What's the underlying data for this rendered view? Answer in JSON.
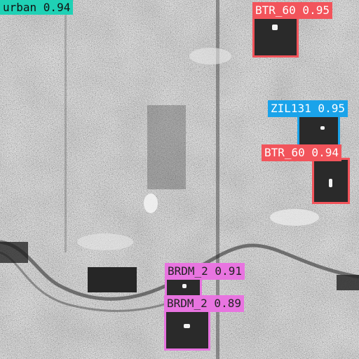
{
  "image": {
    "kind": "SAR grayscale scene with object detections"
  },
  "scene_label": {
    "text": "urban 0.94",
    "color": "#1fd1b5",
    "text_color": "#111111"
  },
  "detections": [
    {
      "label": "BTR_60 0.95",
      "class": "BTR_60",
      "confidence": 0.95,
      "color": "#f2545b",
      "text_color": "#ffffff"
    },
    {
      "label": "ZIL131 0.95",
      "class": "ZIL131",
      "confidence": 0.95,
      "color": "#1aa3ea",
      "text_color": "#ffffff"
    },
    {
      "label": "BTR_60 0.94",
      "class": "BTR_60",
      "confidence": 0.94,
      "color": "#f2545b",
      "text_color": "#ffffff"
    },
    {
      "label": "BRDM_2 0.91",
      "class": "BRDM_2",
      "confidence": 0.91,
      "color": "#e874e0",
      "text_color": "#222222"
    },
    {
      "label": "BRDM_2 0.89",
      "class": "BRDM_2",
      "confidence": 0.89,
      "color": "#e874e0",
      "text_color": "#222222"
    }
  ]
}
